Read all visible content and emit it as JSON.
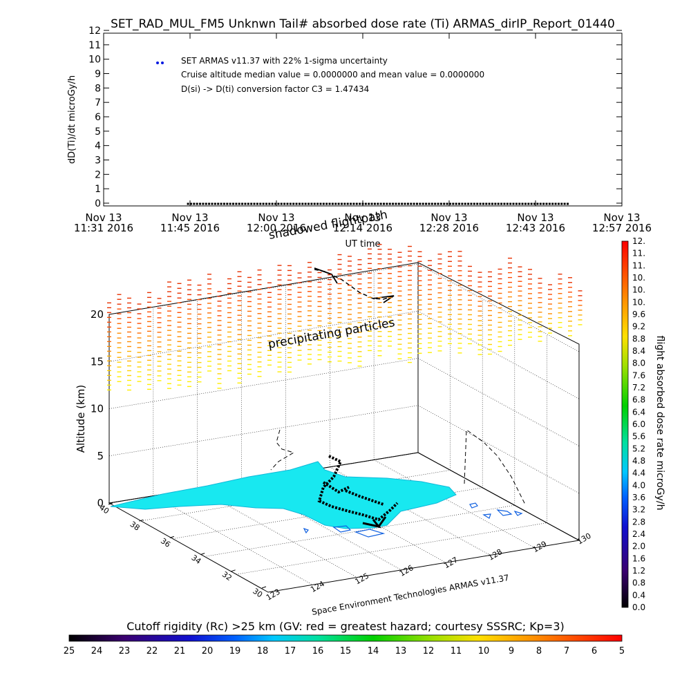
{
  "chart_data": [
    {
      "type": "scatter",
      "title": "SET_RAD_MUL_FM5 Unknwn Tail#  absorbed dose rate (Ti) ARMAS_dirIP_Report_01440",
      "ylabel": "dD(Ti)/dt microGy/h",
      "xlabel": "UT time",
      "ylim": [
        0,
        12
      ],
      "yticks": [
        "0",
        "1",
        "2",
        "3",
        "4",
        "5",
        "6",
        "7",
        "8",
        "9",
        "10",
        "11",
        "12"
      ],
      "xticks": [
        {
          "date": "Nov 13",
          "time": "11:31 2016"
        },
        {
          "date": "Nov 13",
          "time": "11:45 2016"
        },
        {
          "date": "Nov 13",
          "time": "12:00 2016"
        },
        {
          "date": "Nov 13",
          "time": "12:14 2016"
        },
        {
          "date": "Nov 13",
          "time": "12:28 2016"
        },
        {
          "date": "Nov 13",
          "time": "12:43 2016"
        },
        {
          "date": "Nov 13",
          "time": "12:57 2016"
        }
      ],
      "legend": "SET ARMAS v11.37 with 22% 1-sigma uncertainty",
      "annotations": [
        "Cruise altitude median value = 0.0000000 and mean value = 0.0000000",
        "D(si) -> D(ti) conversion factor C3 = 1.47434"
      ],
      "series": [
        {
          "name": "SET ARMAS v11.37 with 22% 1-sigma uncertainty",
          "color": "#000000",
          "x_range": [
            "11:45 2016",
            "12:48 2016"
          ],
          "y": 0.0
        }
      ],
      "grid": false
    },
    {
      "type": "scatter",
      "ylabel": "Altitude (km)",
      "zticks": [
        "0",
        "5",
        "10",
        "15",
        "20"
      ],
      "lat_ticks": [
        "40",
        "38",
        "36",
        "34",
        "32",
        "30"
      ],
      "lon_ticks": [
        "123",
        "124",
        "125",
        "126",
        "127",
        "128",
        "129",
        "130"
      ],
      "xlabel": "Space Environment Technologies ARMAS v11.37",
      "annotations": [
        "shadowed flightpath",
        "precipitating particles"
      ],
      "colorbar": {
        "label": "flight absorbed dose rate microGy/h",
        "ticks": [
          "0.0",
          "0.4",
          "0.8",
          "1.2",
          "1.6",
          "2.0",
          "2.4",
          "2.8",
          "3.2",
          "3.6",
          "4.0",
          "4.4",
          "4.8",
          "5.2",
          "5.6",
          "6.0",
          "6.4",
          "6.8",
          "7.2",
          "7.6",
          "8.0",
          "8.4",
          "8.8",
          "9.2",
          "9.6",
          "10.",
          "10.",
          "10.",
          "11.",
          "11.",
          "12."
        ]
      },
      "grid": true
    },
    {
      "type": "heatmap",
      "title": "Cutoff rigidity (Rc) >25 km (GV: red = greatest hazard; courtesy SSSRC; Kp=3)",
      "ticks": [
        "25",
        "24",
        "23",
        "22",
        "21",
        "20",
        "19",
        "18",
        "17",
        "16",
        "15",
        "14",
        "13",
        "12",
        "11",
        "10",
        "9",
        "8",
        "7",
        "6",
        "5"
      ]
    }
  ]
}
